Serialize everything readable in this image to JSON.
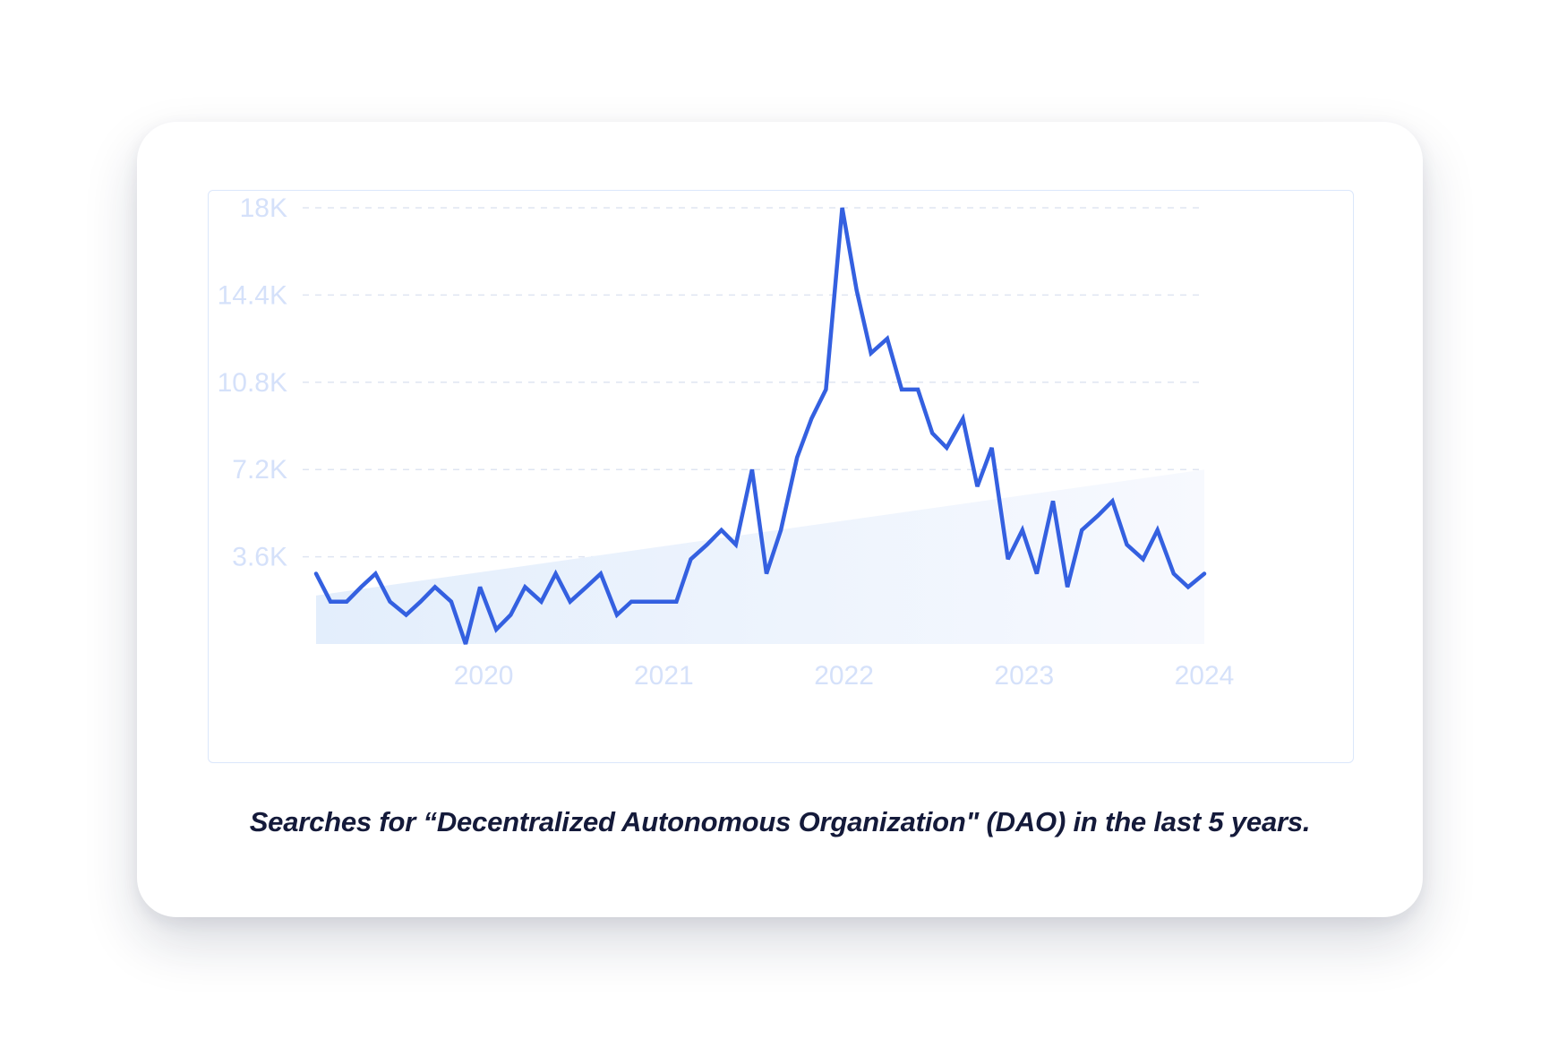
{
  "caption": "Searches for “Decentralized Autonomous Organization\" (DAO) in the last 5 years.",
  "colors": {
    "line": "#3460e0",
    "trend_fill_start": "#e3eefc",
    "trend_fill_end": "#f7f9fe",
    "grid": "#dfe5f2",
    "tick_label": "#d5e1fa",
    "frame_border": "#dbe7fb",
    "caption": "#141a3a"
  },
  "chart_data": {
    "type": "line",
    "title": "",
    "xlabel": "",
    "ylabel": "",
    "ylim": [
      0,
      18000
    ],
    "yticks": [
      3600,
      7200,
      10800,
      14400,
      18000
    ],
    "ytick_labels": [
      "3.6K",
      "7.2K",
      "10.8K",
      "14.4K",
      "18K"
    ],
    "xlim": [
      2019.07,
      2024
    ],
    "xticks": [
      2020,
      2021,
      2022,
      2023,
      2024
    ],
    "xtick_labels": [
      "2020",
      "2021",
      "2022",
      "2023",
      "2024"
    ],
    "grid": "horizontal-dashed",
    "x": [
      2019.07,
      2019.15,
      2019.24,
      2019.32,
      2019.4,
      2019.48,
      2019.57,
      2019.65,
      2019.73,
      2019.82,
      2019.9,
      2019.98,
      2020.07,
      2020.15,
      2020.23,
      2020.32,
      2020.4,
      2020.48,
      2020.57,
      2020.65,
      2020.74,
      2020.82,
      2020.9,
      2020.99,
      2021.07,
      2021.15,
      2021.24,
      2021.32,
      2021.4,
      2021.49,
      2021.57,
      2021.65,
      2021.74,
      2021.82,
      2021.9,
      2021.99,
      2022.07,
      2022.15,
      2022.24,
      2022.32,
      2022.41,
      2022.49,
      2022.57,
      2022.66,
      2022.74,
      2022.82,
      2022.91,
      2022.99,
      2023.07,
      2023.16,
      2023.24,
      2023.32,
      2023.41,
      2023.49,
      2023.57,
      2023.66,
      2023.74,
      2023.83,
      2023.91,
      2024.0
    ],
    "series": [
      {
        "values": [
          2900,
          1750,
          1750,
          2350,
          2900,
          1750,
          1200,
          1750,
          2350,
          1750,
          0,
          2350,
          600,
          1200,
          2350,
          1750,
          2900,
          1750,
          2350,
          2900,
          1200,
          1750,
          1750,
          1750,
          1750,
          3500,
          4100,
          4700,
          4100,
          7200,
          2900,
          4700,
          7700,
          9300,
          10500,
          18000,
          14600,
          12000,
          12600,
          10500,
          10500,
          8700,
          8100,
          9300,
          6500,
          8100,
          3500,
          4700,
          2900,
          5900,
          2350,
          4700,
          5300,
          5900,
          4100,
          3500,
          4700,
          2900,
          2350,
          2900
        ]
      }
    ],
    "trend_band": {
      "start": 2000,
      "end": 7200
    }
  }
}
